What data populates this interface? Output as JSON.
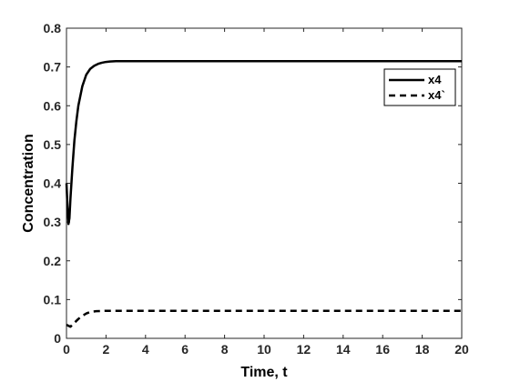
{
  "chart_data": {
    "type": "line",
    "title": "",
    "xlabel": "Time, t",
    "ylabel": "Concentration",
    "xlim": [
      0,
      20
    ],
    "ylim": [
      0,
      0.8
    ],
    "xticks": [
      "0",
      "2",
      "4",
      "6",
      "8",
      "10",
      "12",
      "14",
      "16",
      "18",
      "20"
    ],
    "yticks": [
      "0",
      "0.1",
      "0.2",
      "0.3",
      "0.4",
      "0.5",
      "0.6",
      "0.7",
      "0.8"
    ],
    "grid": false,
    "legend_position": "top-right",
    "series": [
      {
        "name": "x4",
        "style": "solid",
        "color": "#000000",
        "x": [
          0,
          0.05,
          0.1,
          0.15,
          0.2,
          0.3,
          0.4,
          0.5,
          0.6,
          0.8,
          1.0,
          1.2,
          1.4,
          1.6,
          1.8,
          2.0,
          2.2,
          2.5,
          3.0,
          4.0,
          5.0,
          6.0,
          8.0,
          10.0,
          12.0,
          14.0,
          16.0,
          18.0,
          20.0
        ],
        "y": [
          0.4,
          0.34,
          0.295,
          0.31,
          0.36,
          0.44,
          0.51,
          0.56,
          0.6,
          0.65,
          0.68,
          0.695,
          0.703,
          0.708,
          0.711,
          0.713,
          0.714,
          0.715,
          0.715,
          0.715,
          0.715,
          0.715,
          0.715,
          0.715,
          0.715,
          0.715,
          0.715,
          0.715,
          0.715
        ]
      },
      {
        "name": "x4`",
        "style": "dashed",
        "color": "#000000",
        "x": [
          0,
          0.2,
          0.4,
          0.6,
          0.8,
          1.0,
          1.2,
          1.5,
          2.0,
          3.0,
          5.0,
          10.0,
          15.0,
          20.0
        ],
        "y": [
          0.035,
          0.03,
          0.04,
          0.05,
          0.058,
          0.064,
          0.068,
          0.07,
          0.071,
          0.071,
          0.071,
          0.071,
          0.071,
          0.071
        ]
      }
    ]
  }
}
